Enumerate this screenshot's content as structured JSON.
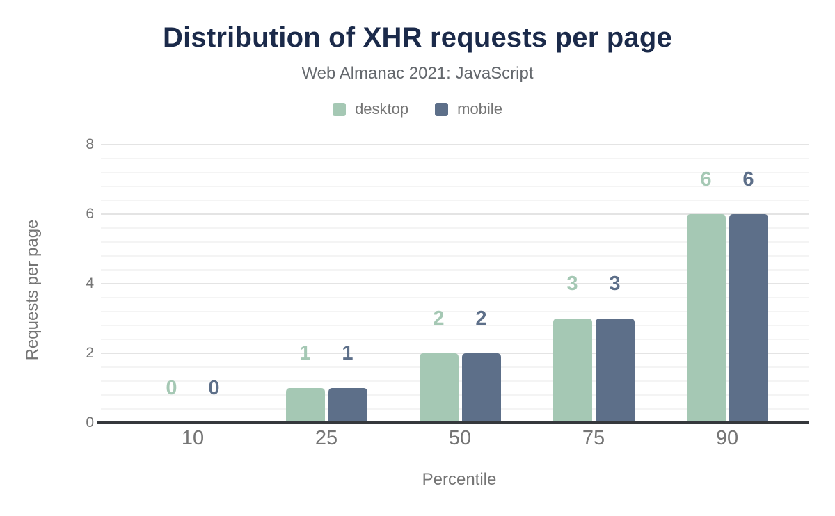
{
  "figure": {
    "title": "Distribution of XHR requests per page",
    "subtitle": "Web Almanac 2021: JavaScript",
    "xlabel": "Percentile",
    "ylabel": "Requests per page"
  },
  "chart_data": {
    "type": "bar",
    "title": "Distribution of XHR requests per page",
    "subtitle": "Web Almanac 2021: JavaScript",
    "categories": [
      "10",
      "25",
      "50",
      "75",
      "90"
    ],
    "series": [
      {
        "name": "desktop",
        "color": "#a5c8b4",
        "values": [
          0,
          1,
          2,
          3,
          6
        ]
      },
      {
        "name": "mobile",
        "color": "#5d6f89",
        "values": [
          0,
          1,
          2,
          3,
          6
        ]
      }
    ],
    "xlabel": "Percentile",
    "ylabel": "Requests per page",
    "ylim": [
      0,
      8
    ],
    "yticks": [
      0,
      2,
      4,
      6,
      8
    ],
    "minor_grid_step": 0.4,
    "grid": true,
    "legend_position": "top",
    "value_labels": true
  },
  "colors": {
    "title": "#1b2a4a",
    "subtitle": "#64686d",
    "axis_text": "#757575",
    "baseline": "#35383c",
    "major_grid": "#e4e4e4",
    "minor_grid": "#f4f4f4",
    "background": "#ffffff"
  }
}
